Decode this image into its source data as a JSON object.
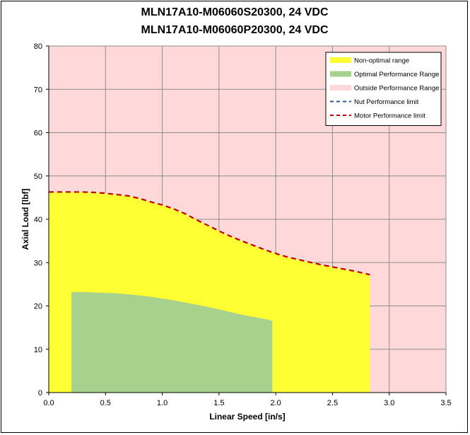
{
  "chart_data": {
    "type": "area",
    "title": [
      "MLN17A10-M06060S20300, 24 VDC",
      "MLN17A10-M06060P20300, 24 VDC"
    ],
    "xlabel": "Linear Speed [in/s]",
    "ylabel": "Axial Load [lbf]",
    "xlim": [
      0,
      3.5
    ],
    "ylim": [
      0,
      80
    ],
    "xticks": [
      0.0,
      0.5,
      1.0,
      1.5,
      2.0,
      2.5,
      3.0,
      3.5
    ],
    "xtick_labels": [
      "0.0",
      "0.5",
      "1.0",
      "1.5",
      "2.0",
      "2.5",
      "3.0",
      "3.5"
    ],
    "yticks": [
      0,
      10,
      20,
      30,
      40,
      50,
      60,
      70,
      80
    ],
    "ytick_labels": [
      "0",
      "10",
      "20",
      "30",
      "40",
      "50",
      "60",
      "70",
      "80"
    ],
    "grid": true,
    "legend_position": "top-right",
    "series": [
      {
        "name": "Non-optimal range",
        "kind": "area",
        "color": "#ffff33",
        "x": [
          0.0,
          0.1,
          0.2,
          0.3,
          0.4,
          0.5,
          0.6,
          0.7,
          0.8,
          0.9,
          1.0,
          1.1,
          1.2,
          1.3,
          1.4,
          1.5,
          1.6,
          1.7,
          1.8,
          1.9,
          2.0,
          2.1,
          2.2,
          2.3,
          2.4,
          2.5,
          2.6,
          2.7,
          2.8,
          2.83
        ],
        "y": [
          46.3,
          46.3,
          46.3,
          46.3,
          46.2,
          46.0,
          45.7,
          45.4,
          44.8,
          44.0,
          43.3,
          42.4,
          41.3,
          39.9,
          38.6,
          37.3,
          36.1,
          35.0,
          34.0,
          33.0,
          32.1,
          31.3,
          30.7,
          30.1,
          29.5,
          29.0,
          28.5,
          28.0,
          27.4,
          27.2
        ]
      },
      {
        "name": "Optimal Performance Range",
        "kind": "area",
        "color": "#a9d18e",
        "x": [
          0.2,
          0.3,
          0.4,
          0.5,
          0.6,
          0.7,
          0.8,
          0.9,
          1.0,
          1.1,
          1.2,
          1.3,
          1.4,
          1.5,
          1.6,
          1.7,
          1.8,
          1.9,
          1.97
        ],
        "y": [
          23.2,
          23.2,
          23.1,
          23.0,
          22.9,
          22.7,
          22.4,
          22.1,
          21.7,
          21.3,
          20.8,
          20.3,
          19.8,
          19.2,
          18.6,
          18.0,
          17.5,
          17.0,
          16.6
        ]
      },
      {
        "name": "Outside Performance Range",
        "kind": "background",
        "color": "#ffd9d9"
      },
      {
        "name": "Nut Performance limit",
        "kind": "dashed-line",
        "color": "#2f5597",
        "x": [],
        "y": []
      },
      {
        "name": "Motor Performance limit",
        "kind": "dashed-line",
        "color": "#c00000",
        "x": [
          0.0,
          0.1,
          0.2,
          0.3,
          0.4,
          0.5,
          0.6,
          0.7,
          0.8,
          0.9,
          1.0,
          1.1,
          1.2,
          1.3,
          1.4,
          1.5,
          1.6,
          1.7,
          1.8,
          1.9,
          2.0,
          2.1,
          2.2,
          2.3,
          2.4,
          2.5,
          2.6,
          2.7,
          2.8,
          2.83
        ],
        "y": [
          46.3,
          46.3,
          46.3,
          46.3,
          46.2,
          46.0,
          45.7,
          45.4,
          44.8,
          44.0,
          43.3,
          42.4,
          41.3,
          39.9,
          38.6,
          37.3,
          36.1,
          35.0,
          34.0,
          33.0,
          32.1,
          31.3,
          30.7,
          30.1,
          29.5,
          29.0,
          28.5,
          28.0,
          27.4,
          27.2
        ]
      }
    ]
  }
}
